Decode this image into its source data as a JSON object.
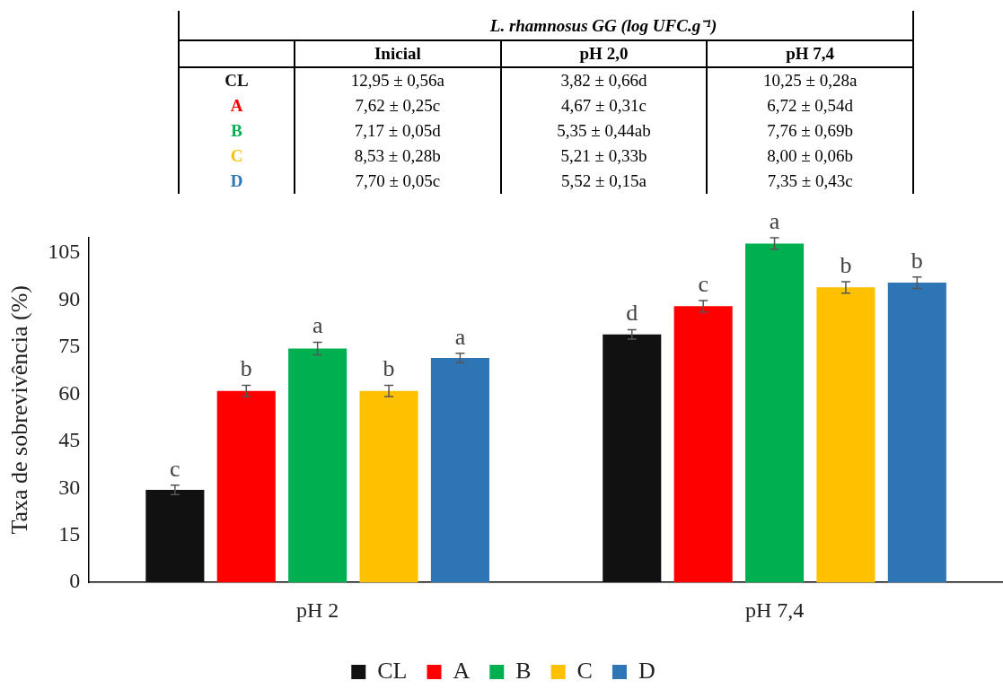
{
  "chart_data": [
    {
      "type": "other",
      "title": "L. rhamnosus GG (log UFC.g⁻¹)",
      "categories": [
        "Inicial",
        "pH 2,0",
        "pH 7,4"
      ],
      "y_categories": [
        "CL",
        "A",
        "B",
        "C",
        "D"
      ],
      "colors": [
        "#111111",
        "#ff0000",
        "#00b050",
        "#ffc000",
        "#2e75b6"
      ],
      "cell_labels": [
        [
          "12,95 ± 0,56a",
          "3,82 ± 0,66d",
          "10,25 ± 0,28a"
        ],
        [
          "7,62 ± 0,25c",
          "4,67 ± 0,31c",
          "6,72 ± 0,54d"
        ],
        [
          "7,17 ± 0,05d",
          "5,35 ± 0,44ab",
          "7,76 ± 0,69b"
        ],
        [
          "8,53 ± 0,28b",
          "5,21 ± 0,33b",
          "8,00 ± 0,06b"
        ],
        [
          "7,70 ± 0,05c",
          "5,52 ± 0,15a",
          "7,35 ± 0,43c"
        ]
      ]
    },
    {
      "type": "bar",
      "ylabel": "Taxa de sobrevivência (%)",
      "categories": [
        "pH 2",
        "pH 7,4"
      ],
      "ylim": [
        0,
        110
      ],
      "yticks": [
        0,
        15,
        30,
        45,
        60,
        75,
        90,
        105
      ],
      "grid": false,
      "legend": "bottom",
      "series": [
        {
          "name": "CL",
          "color": "#111111",
          "values": [
            29.5,
            79
          ],
          "errors": [
            1.5,
            1.5
          ],
          "value_labels": [
            "c",
            "d"
          ]
        },
        {
          "name": "A",
          "color": "#ff0000",
          "values": [
            61,
            88
          ],
          "errors": [
            1.8,
            1.8
          ],
          "value_labels": [
            "b",
            "c"
          ]
        },
        {
          "name": "B",
          "color": "#00b050",
          "values": [
            74.5,
            108
          ],
          "errors": [
            2,
            1.8
          ],
          "value_labels": [
            "a",
            "a"
          ]
        },
        {
          "name": "C",
          "color": "#ffc000",
          "values": [
            61,
            94
          ],
          "errors": [
            1.8,
            1.8
          ],
          "value_labels": [
            "b",
            "b"
          ]
        },
        {
          "name": "D",
          "color": "#2e75b6",
          "values": [
            71.5,
            95.5
          ],
          "errors": [
            1.5,
            1.8
          ],
          "value_labels": [
            "a",
            "b"
          ]
        }
      ]
    }
  ]
}
